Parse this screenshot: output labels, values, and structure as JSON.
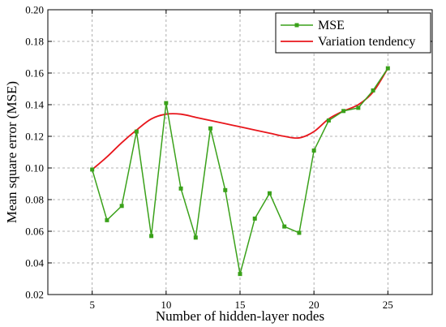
{
  "chart_data": {
    "type": "line",
    "title": "",
    "xlabel": "Number of hidden-layer nodes",
    "ylabel": "Mean square error (MSE)",
    "xlim": [
      2,
      28
    ],
    "ylim": [
      0.02,
      0.2
    ],
    "xticks": [
      5,
      10,
      15,
      20,
      25
    ],
    "yticks": [
      0.02,
      0.04,
      0.06,
      0.08,
      0.1,
      0.12,
      0.14,
      0.16,
      0.18,
      0.2
    ],
    "xtick_labels": [
      "5",
      "10",
      "15",
      "20",
      "25"
    ],
    "ytick_labels": [
      "0.02",
      "0.04",
      "0.06",
      "0.08",
      "0.10",
      "0.12",
      "0.14",
      "0.16",
      "0.18",
      "0.20"
    ],
    "grid": true,
    "legend_position": "top-right",
    "series": [
      {
        "name": "MSE",
        "color": "#3aa11a",
        "marker": "square",
        "x": [
          5,
          6,
          7,
          8,
          9,
          10,
          11,
          12,
          13,
          14,
          15,
          16,
          17,
          18,
          19,
          20,
          21,
          22,
          23,
          24,
          25
        ],
        "values": [
          0.099,
          0.067,
          0.076,
          0.123,
          0.057,
          0.141,
          0.087,
          0.056,
          0.125,
          0.086,
          0.033,
          0.068,
          0.084,
          0.063,
          0.059,
          0.111,
          0.13,
          0.136,
          0.138,
          0.149,
          0.163
        ]
      },
      {
        "name": "Variation tendency",
        "color": "#e8161c",
        "marker": "none",
        "x": [
          5,
          6,
          7,
          8,
          9,
          10,
          11,
          12,
          13,
          14,
          15,
          16,
          17,
          18,
          19,
          20,
          21,
          22,
          23,
          24,
          25
        ],
        "values": [
          0.099,
          0.107,
          0.116,
          0.124,
          0.131,
          0.134,
          0.134,
          0.132,
          0.13,
          0.128,
          0.126,
          0.124,
          0.122,
          0.12,
          0.119,
          0.123,
          0.131,
          0.136,
          0.14,
          0.148,
          0.163
        ]
      }
    ]
  }
}
